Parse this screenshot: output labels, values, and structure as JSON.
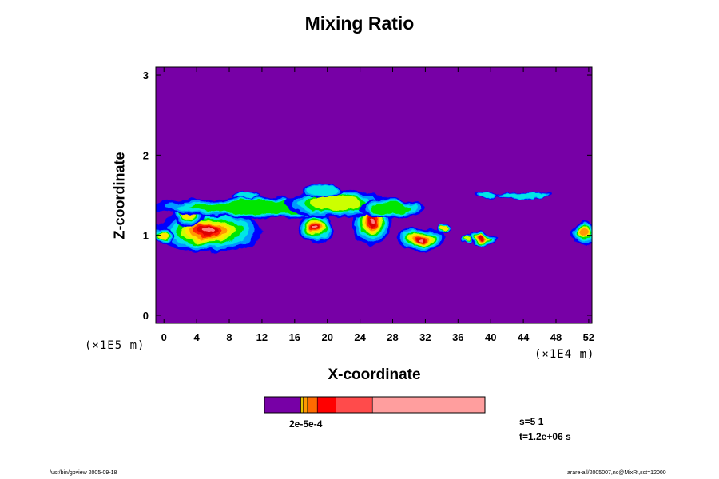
{
  "chart_data": {
    "type": "heatmap",
    "title": "Mixing Ratio",
    "xlabel": "X-coordinate",
    "ylabel": "Z-coordinate",
    "x_unit": "(×1E4 m)",
    "y_unit": "(×1E5 m)",
    "xlim": [
      -1,
      52.4
    ],
    "ylim": [
      -0.1,
      3.1
    ],
    "x_ticks": [
      "0",
      "4",
      "8",
      "12",
      "16",
      "20",
      "24",
      "28",
      "32",
      "36",
      "40",
      "44",
      "48",
      "52"
    ],
    "y_ticks": [
      "0",
      "1",
      "2",
      "3"
    ],
    "background_color": "#7700a6",
    "colorbar": {
      "label": "2e-5e-4",
      "segments": [
        {
          "color": "#7700a6",
          "frac": 0.165
        },
        {
          "color": "#e6c800",
          "frac": 0.01
        },
        {
          "color": "#ff9900",
          "frac": 0.02
        },
        {
          "color": "#ff6a00",
          "frac": 0.045
        },
        {
          "color": "#ff0000",
          "frac": 0.085
        },
        {
          "color": "#ff4b4b",
          "frac": 0.165
        },
        {
          "color": "#ff9e9e",
          "frac": 0.51
        }
      ]
    },
    "features": [
      {
        "kind": "blob",
        "x": 5.5,
        "y": 1.05,
        "rx": 6.5,
        "ry": 0.26,
        "intensity": 1.0
      },
      {
        "kind": "blob",
        "x": 3.0,
        "y": 1.28,
        "rx": 2.0,
        "ry": 0.18,
        "intensity": 0.6
      },
      {
        "kind": "blob",
        "x": 0.0,
        "y": 1.0,
        "rx": 1.2,
        "ry": 0.12,
        "intensity": 0.55
      },
      {
        "kind": "blob",
        "x": 18.5,
        "y": 1.1,
        "rx": 2.0,
        "ry": 0.2,
        "intensity": 0.95
      },
      {
        "kind": "blob",
        "x": 25.5,
        "y": 1.18,
        "rx": 2.4,
        "ry": 0.3,
        "intensity": 0.95
      },
      {
        "kind": "blob",
        "x": 31.5,
        "y": 0.95,
        "rx": 3.0,
        "ry": 0.15,
        "intensity": 0.95
      },
      {
        "kind": "blob",
        "x": 39.0,
        "y": 0.96,
        "rx": 1.9,
        "ry": 0.07,
        "intensity": 0.9
      },
      {
        "kind": "blob",
        "x": 51.5,
        "y": 1.02,
        "rx": 1.5,
        "ry": 0.14,
        "intensity": 0.7
      },
      {
        "kind": "blob",
        "x": 34.3,
        "y": 1.08,
        "rx": 0.7,
        "ry": 0.06,
        "intensity": 0.55
      },
      {
        "kind": "blob",
        "x": 37.0,
        "y": 0.95,
        "rx": 0.6,
        "ry": 0.06,
        "intensity": 0.45
      },
      {
        "kind": "band",
        "x": 12.0,
        "y": 1.35,
        "rx": 14.0,
        "ry": 0.13,
        "intensity": 0.35
      },
      {
        "kind": "band",
        "x": 21.0,
        "y": 1.4,
        "rx": 6.0,
        "ry": 0.18,
        "intensity": 0.45
      },
      {
        "kind": "band",
        "x": 28.0,
        "y": 1.33,
        "rx": 4.0,
        "ry": 0.12,
        "intensity": 0.4
      },
      {
        "kind": "band",
        "x": 19.5,
        "y": 1.55,
        "rx": 2.5,
        "ry": 0.08,
        "intensity": 0.3
      },
      {
        "kind": "band",
        "x": 10.0,
        "y": 1.5,
        "rx": 1.6,
        "ry": 0.05,
        "intensity": 0.25
      },
      {
        "kind": "band",
        "x": 44.0,
        "y": 1.5,
        "rx": 3.5,
        "ry": 0.04,
        "intensity": 0.25
      },
      {
        "kind": "band",
        "x": 39.5,
        "y": 1.5,
        "rx": 1.4,
        "ry": 0.05,
        "intensity": 0.25
      }
    ]
  },
  "info": {
    "s": "s=5 1",
    "t": "t=1.2e+06 s"
  },
  "footer": {
    "left": "/usr/bin/gpview 2005-09-18",
    "right": "arare-all/2005007,nc@MixRt,sct=12000"
  }
}
